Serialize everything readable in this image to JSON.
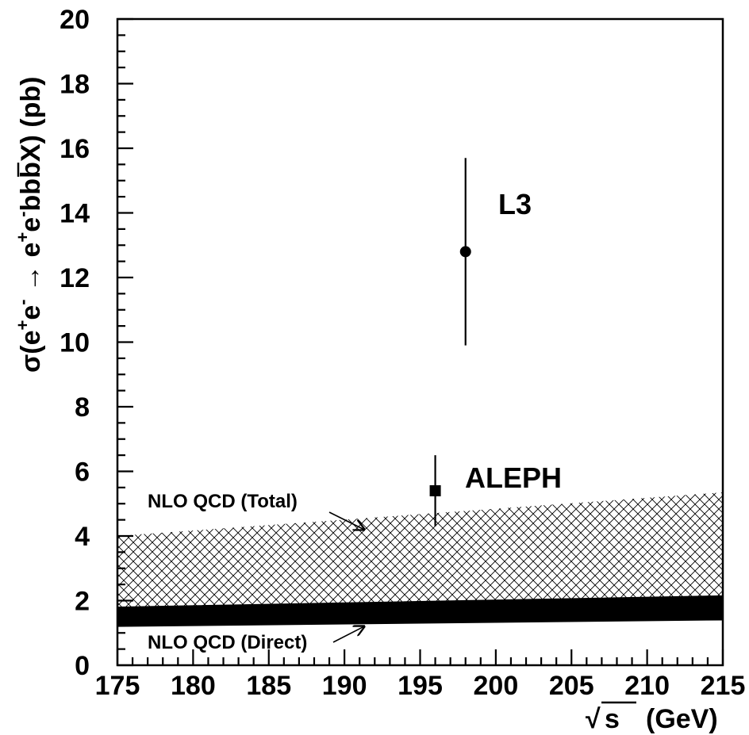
{
  "chart_data": {
    "type": "scatter",
    "xlabel": "(GeV)",
    "xlabel_sqrt_var": "s",
    "ylabel": {
      "prefix": "σ(e",
      "sup1": "+",
      "mid1": "e",
      "sup2": "-",
      "arrow": " → e",
      "sup3": "+",
      "mid2": "e",
      "sup4": "-",
      "mid3": "bb",
      "bar_char": "b",
      "suffix": "X) (pb)"
    },
    "xlim": [
      175,
      215
    ],
    "ylim": [
      0,
      20
    ],
    "xticks": [
      "175",
      "180",
      "185",
      "190",
      "195",
      "200",
      "205",
      "210",
      "215"
    ],
    "yticks": [
      "0",
      "2",
      "4",
      "6",
      "8",
      "10",
      "12",
      "14",
      "16",
      "18",
      "20"
    ],
    "grid": false,
    "points": [
      {
        "label": "L3",
        "x": 198,
        "y": 12.8,
        "err_low": 9.9,
        "err_high": 15.7,
        "marker": "circle"
      },
      {
        "label": "ALEPH",
        "x": 196,
        "y": 5.4,
        "err_low": 4.3,
        "err_high": 6.5,
        "marker": "square"
      }
    ],
    "bands": [
      {
        "name": "NLO QCD (Total)",
        "fill": "cross-hatch",
        "x": [
          175,
          215
        ],
        "lower": [
          1.8,
          2.15
        ],
        "upper": [
          4.0,
          5.35
        ]
      },
      {
        "name": "NLO QCD (Direct)",
        "fill": "solid",
        "x": [
          175,
          215
        ],
        "lower": [
          1.2,
          1.4
        ],
        "upper": [
          1.8,
          2.15
        ]
      }
    ],
    "annotations": [
      {
        "text": "NLO QCD (Total)",
        "arrow_to": [
          191.3,
          4.2
        ]
      },
      {
        "text": "NLO QCD (Direct)",
        "arrow_to": [
          191.3,
          1.2
        ]
      }
    ]
  }
}
